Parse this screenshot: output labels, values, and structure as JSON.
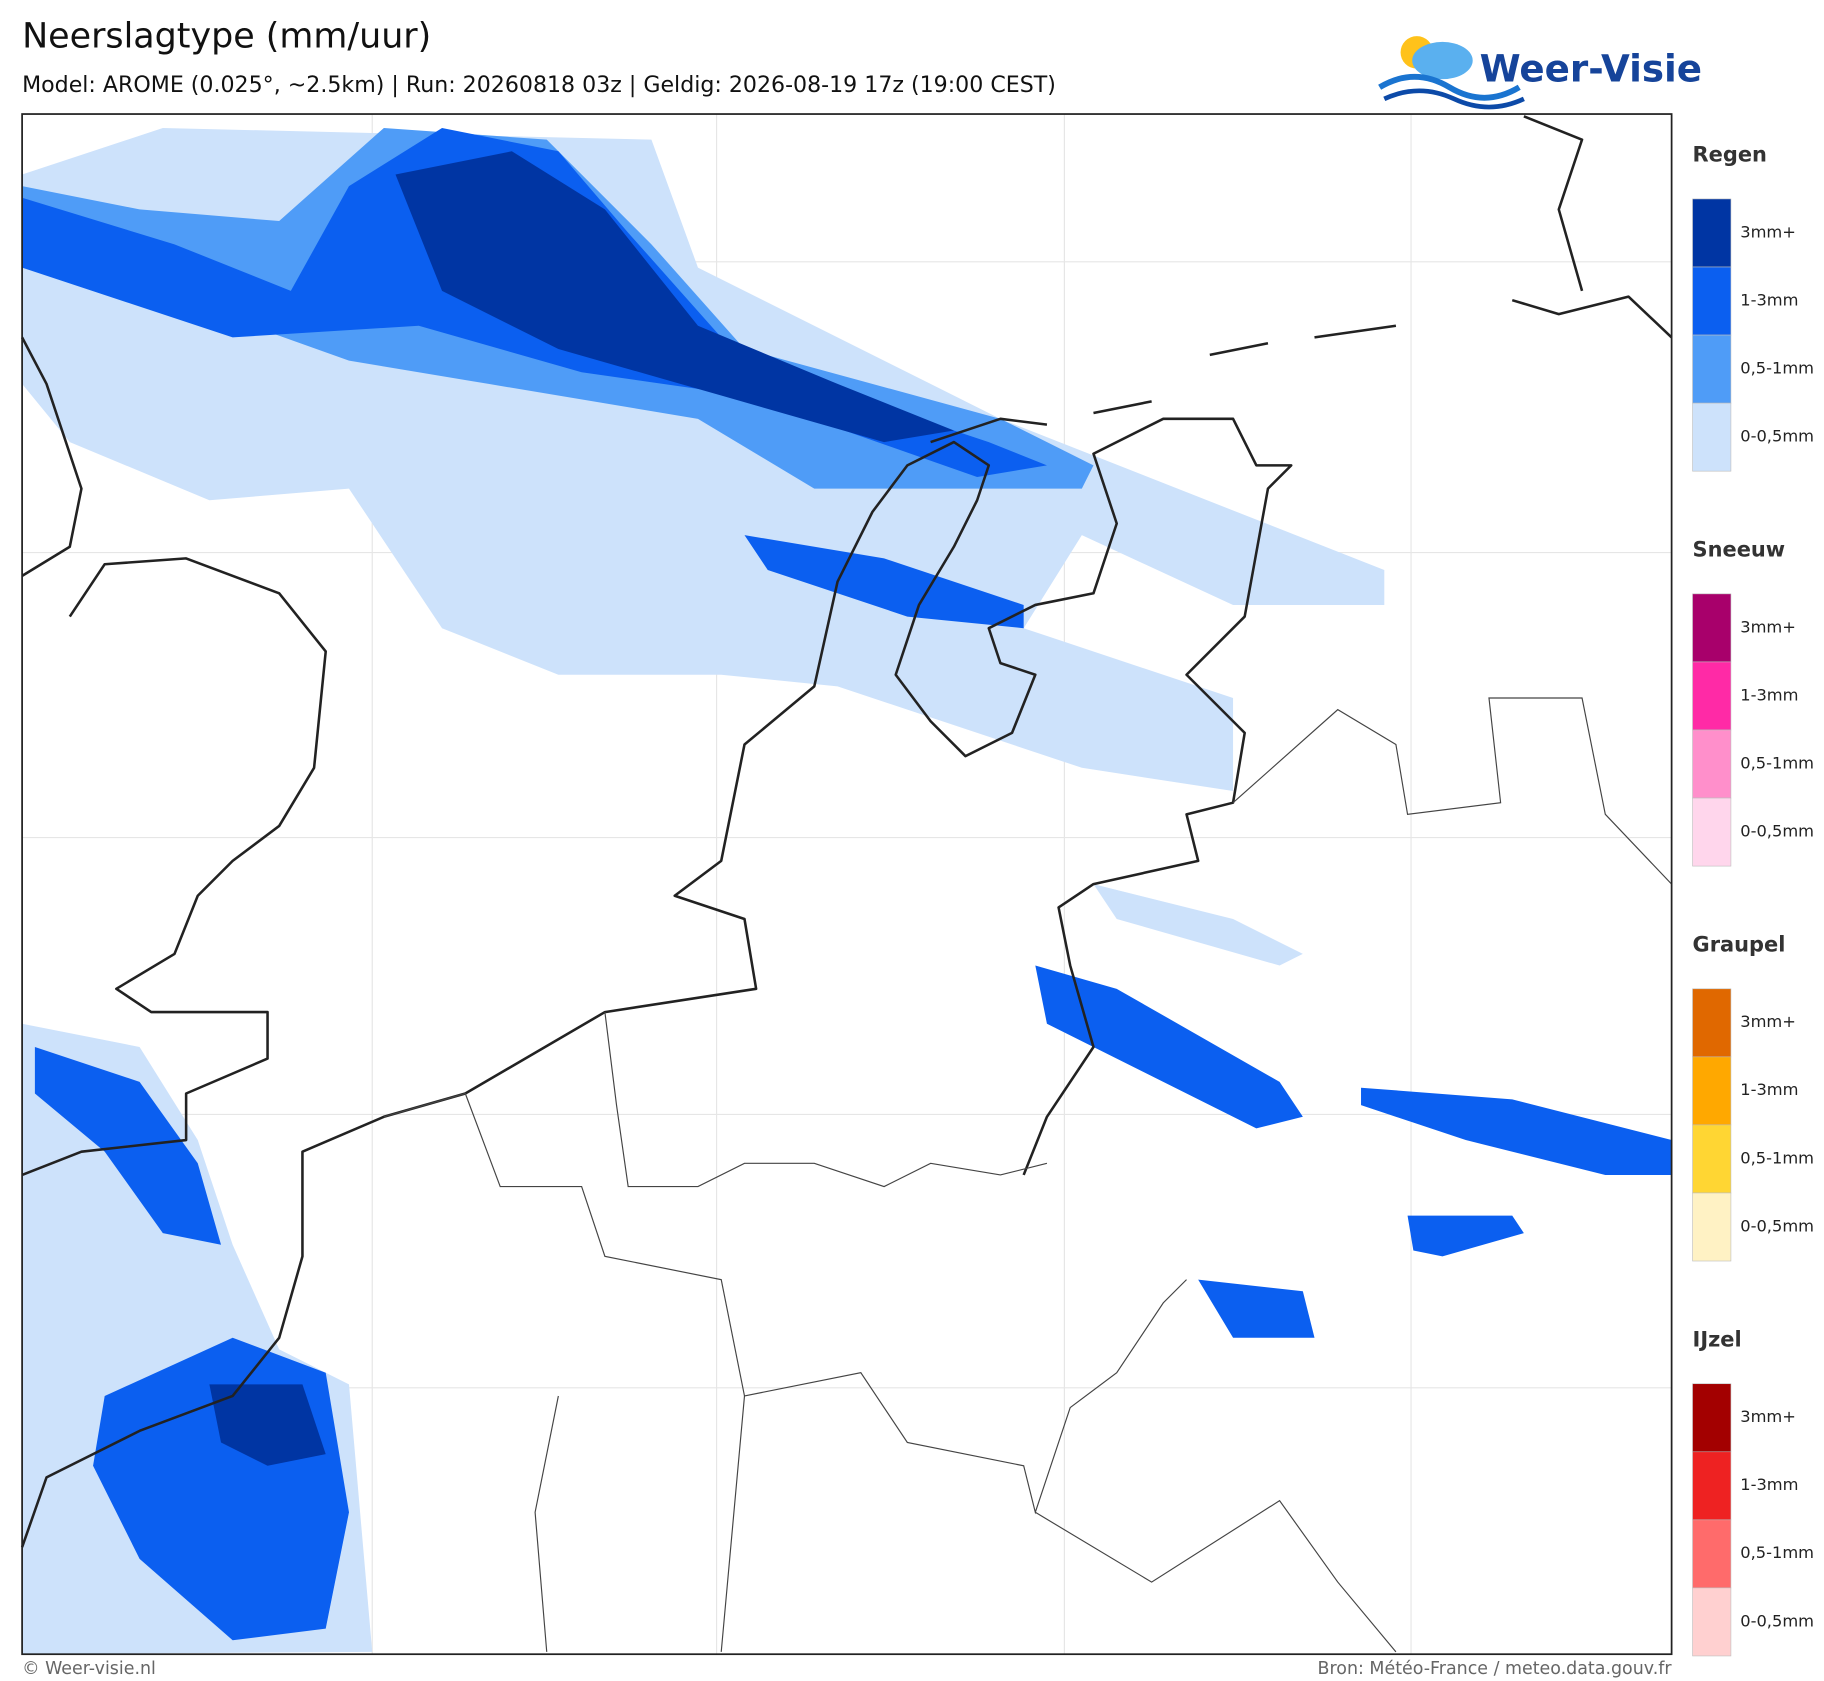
{
  "header": {
    "title": "Neerslagtype (mm/uur)",
    "subtitle": "Model: AROME (0.025°, ~2.5km)  |  Run: 20260818 03z  |  Geldig: 2026-08-19 17z (19:00 CEST)"
  },
  "logo": {
    "text": "Weer-Visie"
  },
  "legend": {
    "sections": [
      {
        "title": "Regen",
        "items": [
          {
            "label": "3mm+",
            "color": "#0035a3"
          },
          {
            "label": "1-3mm",
            "color": "#0b5ff0"
          },
          {
            "label": "0,5-1mm",
            "color": "#4f9cf7"
          },
          {
            "label": "0-0,5mm",
            "color": "#cde2fb"
          }
        ]
      },
      {
        "title": "Sneeuw",
        "items": [
          {
            "label": "3mm+",
            "color": "#a8006b"
          },
          {
            "label": "1-3mm",
            "color": "#ff2aa6"
          },
          {
            "label": "0,5-1mm",
            "color": "#ff8fcb"
          },
          {
            "label": "0-0,5mm",
            "color": "#ffd6ec"
          }
        ]
      },
      {
        "title": "Graupel",
        "items": [
          {
            "label": "3mm+",
            "color": "#e06800"
          },
          {
            "label": "1-3mm",
            "color": "#ffa800"
          },
          {
            "label": "0,5-1mm",
            "color": "#ffd633"
          },
          {
            "label": "0-0,5mm",
            "color": "#fff2c4"
          }
        ]
      },
      {
        "title": "IJzel",
        "items": [
          {
            "label": "3mm+",
            "color": "#a30000"
          },
          {
            "label": "1-3mm",
            "color": "#ee2222"
          },
          {
            "label": "0,5-1mm",
            "color": "#ff6b6b"
          },
          {
            "label": "0-0,5mm",
            "color": "#ffd0d0"
          }
        ]
      }
    ]
  },
  "footer": {
    "left": "© Weer-visie.nl",
    "right": "Bron: Météo-France / meteo.data.gouv.fr"
  }
}
